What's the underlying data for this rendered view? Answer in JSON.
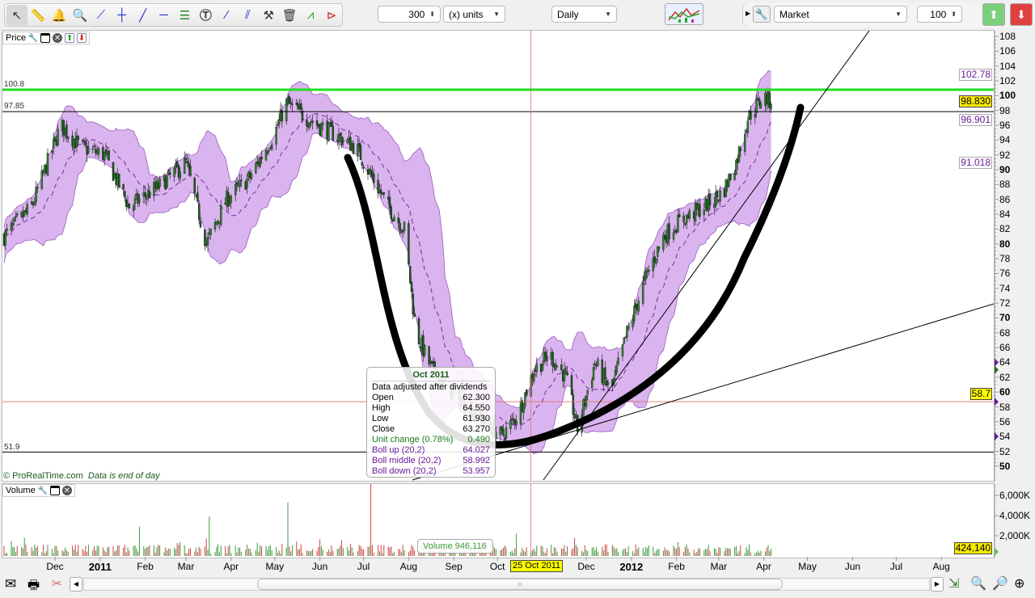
{
  "toolbar": {
    "tools": [
      "pointer",
      "ruler",
      "alarm-bell",
      "zoom",
      "segment",
      "vertical-line",
      "line",
      "horizontal-line",
      "fibonacci",
      "text",
      "points",
      "parallel",
      "tools",
      "trash",
      "chart-pattern-1",
      "chart-pattern-2"
    ],
    "units_value": "300",
    "units_label": "(x) units",
    "timeframe": "Daily",
    "order_type": "Market",
    "quantity": "100"
  },
  "price_panel": {
    "label": "Price",
    "line_labels": {
      "green": "100.8",
      "top_black": "97.85",
      "bottom_black": "51.9"
    },
    "copyright": "© ProRealTime.com",
    "eod_note": "Data is end of day"
  },
  "volume_panel": {
    "label": "Volume",
    "volume_readout": "Volume  946,116"
  },
  "tooltip": {
    "date": "Oct 2011",
    "adjusted": "Data adjusted after dividends",
    "rows": [
      {
        "label": "Open",
        "value": "62.300",
        "color": "#000"
      },
      {
        "label": "High",
        "value": "64.550",
        "color": "#000"
      },
      {
        "label": "Low",
        "value": "61.930",
        "color": "#000"
      },
      {
        "label": "Close",
        "value": "63.270",
        "color": "#000"
      },
      {
        "label": "Unit change (0.78%)",
        "value": "0.490",
        "color": "#1a7a1a"
      },
      {
        "label": "Boll up (20,2)",
        "value": "64.027",
        "color": "#6a1a9a"
      },
      {
        "label": "Boll middle (20,2)",
        "value": "58.992",
        "color": "#6a1a9a"
      },
      {
        "label": "Boll down (20,2)",
        "value": "53.957",
        "color": "#6a1a9a"
      }
    ]
  },
  "axis": {
    "price_ticks": [
      108,
      106,
      104,
      102,
      100,
      98,
      96,
      94,
      92,
      90,
      88,
      86,
      84,
      82,
      80,
      78,
      76,
      74,
      72,
      70,
      68,
      66,
      64,
      62,
      60,
      58,
      56,
      54,
      52,
      50
    ],
    "volume_ticks": [
      "6,000K",
      "4,000K",
      "2,000K"
    ],
    "tags": {
      "boll_up": "102.78",
      "last": "98.830",
      "boll_mid": "96.901",
      "boll_down": "91.018",
      "crosshair": "58.7",
      "volume_last": "424,140"
    },
    "months": [
      {
        "label": "Dec",
        "date": "2010-12-01"
      },
      {
        "label": "2011",
        "date": "2011-01-01",
        "bold": true
      },
      {
        "label": "Feb",
        "date": "2011-02-01"
      },
      {
        "label": "Mar",
        "date": "2011-03-01"
      },
      {
        "label": "Apr",
        "date": "2011-04-01"
      },
      {
        "label": "May",
        "date": "2011-05-01"
      },
      {
        "label": "Jun",
        "date": "2011-06-01"
      },
      {
        "label": "Jul",
        "date": "2011-07-01"
      },
      {
        "label": "Aug",
        "date": "2011-08-01"
      },
      {
        "label": "Sep",
        "date": "2011-09-01"
      },
      {
        "label": "Oct",
        "date": "2011-10-01"
      },
      {
        "label": "Dec",
        "date": "2011-12-01"
      },
      {
        "label": "2012",
        "date": "2012-01-01",
        "bold": true
      },
      {
        "label": "Feb",
        "date": "2012-02-01"
      },
      {
        "label": "Mar",
        "date": "2012-03-01"
      },
      {
        "label": "Apr",
        "date": "2012-04-01"
      },
      {
        "label": "May",
        "date": "2012-05-01"
      },
      {
        "label": "Jun",
        "date": "2012-06-01"
      },
      {
        "label": "Jul",
        "date": "2012-07-01"
      },
      {
        "label": "Aug",
        "date": "2012-08-01"
      }
    ],
    "crosshair_date": "25 Oct 2011"
  },
  "chart_data": {
    "type": "candlestick",
    "indicator": "Bollinger Bands (20,2)",
    "ylim": [
      50,
      108
    ],
    "close_path": [
      [
        "2010-10-27",
        81
      ],
      [
        "2010-11-15",
        85
      ],
      [
        "2010-12-05",
        96
      ],
      [
        "2010-12-19",
        93
      ],
      [
        "2011-01-04",
        92
      ],
      [
        "2011-01-21",
        85
      ],
      [
        "2011-02-12",
        88
      ],
      [
        "2011-03-01",
        91
      ],
      [
        "2011-03-15",
        80
      ],
      [
        "2011-03-29",
        86
      ],
      [
        "2011-04-14",
        89
      ],
      [
        "2011-05-01",
        95
      ],
      [
        "2011-05-09",
        99
      ],
      [
        "2011-05-23",
        97
      ],
      [
        "2011-06-09",
        95
      ],
      [
        "2011-06-26",
        93
      ],
      [
        "2011-07-04",
        90
      ],
      [
        "2011-07-18",
        85
      ],
      [
        "2011-07-29",
        82
      ],
      [
        "2011-08-06",
        68
      ],
      [
        "2011-08-17",
        63
      ],
      [
        "2011-08-31",
        60
      ],
      [
        "2011-09-17",
        57
      ],
      [
        "2011-10-04",
        54
      ],
      [
        "2011-10-15",
        57
      ],
      [
        "2011-10-26",
        63
      ],
      [
        "2011-11-06",
        65
      ],
      [
        "2011-11-17",
        62
      ],
      [
        "2011-11-25",
        55
      ],
      [
        "2011-12-07",
        64
      ],
      [
        "2011-12-18",
        60
      ],
      [
        "2011-12-29",
        68
      ],
      [
        "2012-01-12",
        76
      ],
      [
        "2012-01-23",
        81
      ],
      [
        "2012-02-03",
        83
      ],
      [
        "2012-02-20",
        85
      ],
      [
        "2012-03-04",
        87
      ],
      [
        "2012-03-13",
        91
      ],
      [
        "2012-03-21",
        97
      ],
      [
        "2012-04-01",
        100
      ],
      [
        "2012-04-07",
        98.83
      ]
    ],
    "horizontal_lines": [
      {
        "value": 100.8,
        "color": "#22dd22"
      },
      {
        "value": 97.85,
        "color": "#000000"
      },
      {
        "value": 51.9,
        "color": "#000000"
      }
    ],
    "crosshair": {
      "date": "2011-10-25",
      "value": 58.7
    },
    "volume_spikes": [
      [
        "2011-01-28",
        2900
      ],
      [
        "2011-03-17",
        3900
      ],
      [
        "2011-05-10",
        5300
      ],
      [
        "2011-07-06",
        7200
      ]
    ],
    "colors": {
      "band_fill": "#dab4ee",
      "band_edge": "#9a5cc0",
      "up": "#3c9a3c",
      "down": "#cc4444",
      "crosshair": "#e07070"
    }
  },
  "bottom": {
    "icons": [
      "envelope",
      "printer",
      "unlink",
      "zoom-fit",
      "zoom-in",
      "zoom-out",
      "zoom-reset"
    ]
  }
}
